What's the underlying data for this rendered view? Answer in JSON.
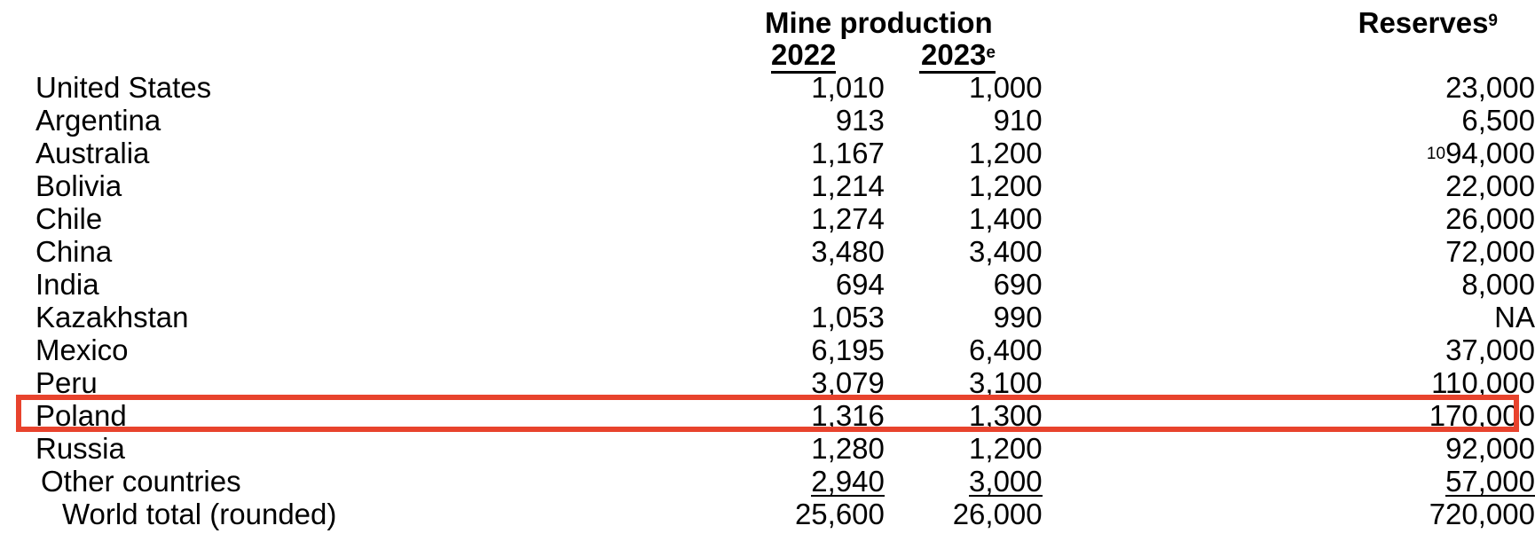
{
  "header": {
    "mine_production": "Mine production",
    "year_2022": "2022",
    "year_2023": "2023",
    "year_2023_sup": "e",
    "reserves": "Reserves",
    "reserves_sup": "9"
  },
  "rows": [
    {
      "country": "United States",
      "prod_2022": "1,010",
      "prod_2023": "1,000",
      "reserves": "23,000"
    },
    {
      "country": "Argentina",
      "prod_2022": "913",
      "prod_2023": "910",
      "reserves": "6,500"
    },
    {
      "country": "Australia",
      "prod_2022": "1,167",
      "prod_2023": "1,200",
      "reserves_note": "10",
      "reserves": "94,000"
    },
    {
      "country": "Bolivia",
      "prod_2022": "1,214",
      "prod_2023": "1,200",
      "reserves": "22,000"
    },
    {
      "country": "Chile",
      "prod_2022": "1,274",
      "prod_2023": "1,400",
      "reserves": "26,000"
    },
    {
      "country": "China",
      "prod_2022": "3,480",
      "prod_2023": "3,400",
      "reserves": "72,000"
    },
    {
      "country": "India",
      "prod_2022": "694",
      "prod_2023": "690",
      "reserves": "8,000"
    },
    {
      "country": "Kazakhstan",
      "prod_2022": "1,053",
      "prod_2023": "990",
      "reserves": "NA"
    },
    {
      "country": "Mexico",
      "prod_2022": "6,195",
      "prod_2023": "6,400",
      "reserves": "37,000"
    },
    {
      "country": "Peru",
      "prod_2022": "3,079",
      "prod_2023": "3,100",
      "reserves": "110,000"
    },
    {
      "country": "Poland",
      "prod_2022": "1,316",
      "prod_2023": "1,300",
      "reserves": "170,000"
    },
    {
      "country": "Russia",
      "prod_2022": "1,280",
      "prod_2023": "1,200",
      "reserves": "92,000"
    },
    {
      "country": "Other countries",
      "prod_2022": "2,940",
      "prod_2023": "3,000",
      "reserves": "57,000"
    },
    {
      "country": "World total (rounded)",
      "prod_2022": "25,600",
      "prod_2023": "26,000",
      "reserves": "720,000"
    }
  ],
  "highlight_color": "#e8432d"
}
